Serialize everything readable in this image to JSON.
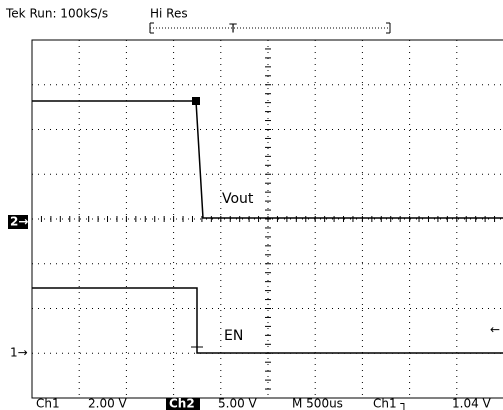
{
  "header": {
    "status": "Tek Run: 100kS/s",
    "mode": "Hi Res",
    "trigger_marker": "T"
  },
  "traces": [
    {
      "label": "Vout",
      "marker": "2→"
    },
    {
      "label": "EN",
      "marker": "1→"
    }
  ],
  "trigger_level_marker": "←",
  "footer": {
    "ch1": "Ch1",
    "ch1_scale": "2.00 V",
    "ch2": "Ch2",
    "ch2_scale": "5.00 V",
    "timebase": "M 500us",
    "trigger_source": "Ch1 ┐",
    "trigger_level": "1.04 V"
  }
}
